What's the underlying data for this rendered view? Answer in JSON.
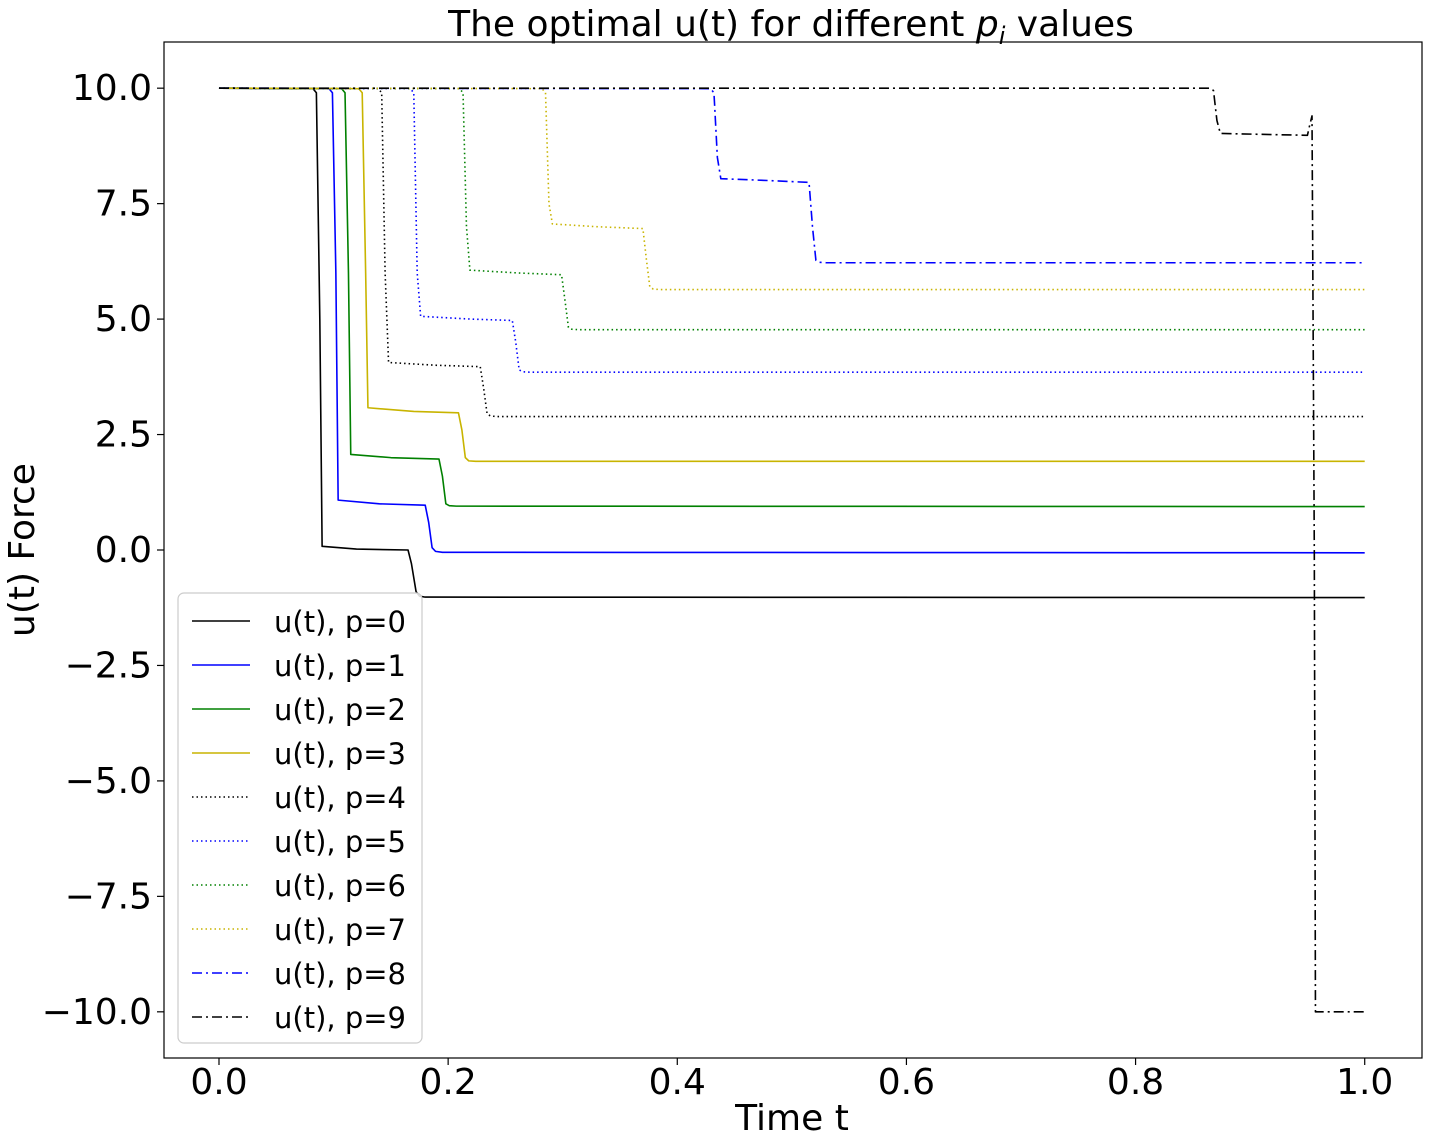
{
  "chart_data": {
    "type": "line",
    "title": "The optimal u(t) for different ",
    "title_math": "p",
    "title_math_sub": "i",
    "title_suffix": " values",
    "xlabel": "Time t",
    "ylabel": "u(t) Force",
    "xlim": [
      -0.048,
      1.05
    ],
    "ylim": [
      -11.0,
      11.0
    ],
    "xticks": [
      0.0,
      0.2,
      0.4,
      0.6,
      0.8,
      1.0
    ],
    "xtick_labels": [
      "0.0",
      "0.2",
      "0.4",
      "0.6",
      "0.8",
      "1.0"
    ],
    "yticks": [
      10.0,
      7.5,
      5.0,
      2.5,
      0.0,
      -2.5,
      -5.0,
      -7.5,
      -10.0
    ],
    "ytick_labels": [
      "10.0",
      "7.5",
      "5.0",
      "2.5",
      "0.0",
      "−2.5",
      "−5.0",
      "−7.5",
      "−10.0"
    ],
    "grid": false,
    "legend_position": "lower-left",
    "series": [
      {
        "name": "u(t), p=0",
        "color": "#000000",
        "style": "solid",
        "x": [
          0.0,
          0.082,
          0.085,
          0.088,
          0.09,
          0.12,
          0.165,
          0.168,
          0.172,
          0.175,
          0.18,
          1.0
        ],
        "y": [
          10.0,
          9.99,
          9.9,
          5.0,
          0.08,
          0.02,
          0.0,
          -0.3,
          -0.9,
          -1.0,
          -1.02,
          -1.03
        ]
      },
      {
        "name": "u(t), p=1",
        "color": "#0000ff",
        "style": "solid",
        "x": [
          0.0,
          0.096,
          0.099,
          0.102,
          0.104,
          0.14,
          0.18,
          0.183,
          0.186,
          0.189,
          0.195,
          1.0
        ],
        "y": [
          10.0,
          9.99,
          9.9,
          6.0,
          1.08,
          1.0,
          0.97,
          0.6,
          0.05,
          -0.03,
          -0.05,
          -0.06
        ]
      },
      {
        "name": "u(t), p=2",
        "color": "#008000",
        "style": "solid",
        "x": [
          0.0,
          0.107,
          0.11,
          0.113,
          0.115,
          0.15,
          0.192,
          0.195,
          0.198,
          0.201,
          0.207,
          1.0
        ],
        "y": [
          10.0,
          9.99,
          9.9,
          6.0,
          2.07,
          2.0,
          1.97,
          1.6,
          1.0,
          0.96,
          0.95,
          0.94
        ]
      },
      {
        "name": "u(t), p=3",
        "color": "#c8b400",
        "style": "solid",
        "x": [
          0.0,
          0.122,
          0.125,
          0.128,
          0.13,
          0.17,
          0.209,
          0.212,
          0.215,
          0.218,
          0.224,
          1.0
        ],
        "y": [
          10.0,
          9.99,
          9.9,
          6.0,
          3.08,
          3.0,
          2.97,
          2.6,
          2.0,
          1.93,
          1.92,
          1.92
        ]
      },
      {
        "name": "u(t), p=4",
        "color": "#000000",
        "style": "dotted",
        "x": [
          0.0,
          0.139,
          0.142,
          0.145,
          0.148,
          0.19,
          0.228,
          0.231,
          0.234,
          0.237,
          0.243,
          1.0
        ],
        "y": [
          10.0,
          9.99,
          9.9,
          6.0,
          4.06,
          4.0,
          3.97,
          3.5,
          2.95,
          2.9,
          2.89,
          2.89
        ]
      },
      {
        "name": "u(t), p=5",
        "color": "#0000ff",
        "style": "dotted",
        "x": [
          0.0,
          0.167,
          0.17,
          0.173,
          0.176,
          0.22,
          0.256,
          0.259,
          0.262,
          0.265,
          0.271,
          1.0
        ],
        "y": [
          10.0,
          9.99,
          9.9,
          6.0,
          5.06,
          5.0,
          4.97,
          4.5,
          3.9,
          3.86,
          3.85,
          3.85
        ]
      },
      {
        "name": "u(t), p=6",
        "color": "#008000",
        "style": "dotted",
        "x": [
          0.0,
          0.21,
          0.213,
          0.216,
          0.219,
          0.26,
          0.299,
          0.302,
          0.305,
          0.308,
          0.314,
          1.0
        ],
        "y": [
          10.0,
          9.99,
          9.9,
          7.0,
          6.06,
          6.0,
          5.96,
          5.4,
          4.82,
          4.78,
          4.77,
          4.77
        ]
      },
      {
        "name": "u(t), p=7",
        "color": "#c8b400",
        "style": "dotted",
        "x": [
          0.0,
          0.282,
          0.285,
          0.288,
          0.291,
          0.33,
          0.37,
          0.373,
          0.376,
          0.379,
          0.385,
          1.0
        ],
        "y": [
          10.0,
          9.99,
          9.9,
          7.5,
          7.06,
          7.0,
          6.96,
          6.3,
          5.7,
          5.65,
          5.64,
          5.64
        ]
      },
      {
        "name": "u(t), p=8",
        "color": "#0000ff",
        "style": "dashdot",
        "x": [
          0.0,
          0.429,
          0.432,
          0.435,
          0.438,
          0.48,
          0.515,
          0.518,
          0.521,
          0.524,
          0.53,
          1.0
        ],
        "y": [
          10.0,
          9.99,
          9.9,
          8.5,
          8.04,
          8.0,
          7.96,
          7.0,
          6.27,
          6.23,
          6.22,
          6.22
        ]
      },
      {
        "name": "u(t), p=9",
        "color": "#000000",
        "style": "dashdot",
        "x": [
          0.0,
          0.865,
          0.868,
          0.871,
          0.874,
          0.91,
          0.95,
          0.952,
          0.954,
          0.956,
          0.957,
          0.958,
          1.0
        ],
        "y": [
          10.0,
          10.0,
          9.95,
          9.3,
          9.02,
          9.0,
          8.98,
          9.2,
          9.4,
          0.0,
          -10.0,
          -10.0,
          -10.0
        ]
      }
    ]
  }
}
